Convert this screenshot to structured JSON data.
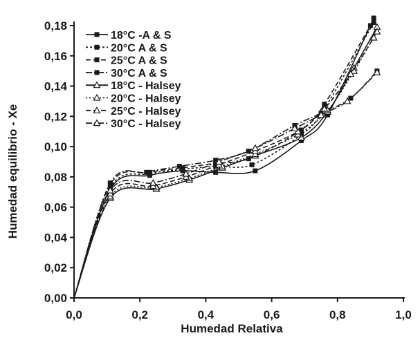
{
  "chart_data": {
    "type": "line",
    "xlabel": "Humedad Relativa",
    "ylabel": "Humedad equilibrio - Xe",
    "xlim": [
      0,
      1.0
    ],
    "ylim": [
      0,
      0.18
    ],
    "x_ticks": [
      "0,0",
      "0,2",
      "0,4",
      "0,6",
      "0,8",
      "1,0"
    ],
    "y_ticks": [
      "0,00",
      "0,02",
      "0,04",
      "0,06",
      "0,08",
      "0,10",
      "0,12",
      "0,14",
      "0,16",
      "0,18"
    ],
    "grid": false,
    "legend_position": "top-left",
    "series": [
      {
        "name": "18°C -A & S",
        "marker": "square",
        "dash": "solid",
        "x": [
          0.0,
          0.11,
          0.23,
          0.33,
          0.43,
          0.55,
          0.69,
          0.77,
          0.91
        ],
        "y": [
          0.0,
          0.072,
          0.081,
          0.084,
          0.083,
          0.084,
          0.104,
          0.121,
          0.185
        ]
      },
      {
        "name": "20°C A & S",
        "marker": "square",
        "dash": "short",
        "x": [
          0.0,
          0.11,
          0.23,
          0.33,
          0.43,
          0.54,
          0.69,
          0.76,
          0.91
        ],
        "y": [
          0.0,
          0.073,
          0.082,
          0.085,
          0.087,
          0.088,
          0.108,
          0.125,
          0.182
        ]
      },
      {
        "name": "25°C A & S",
        "marker": "square",
        "dash": "dash",
        "x": [
          0.0,
          0.11,
          0.23,
          0.33,
          0.43,
          0.53,
          0.69,
          0.76,
          0.9
        ],
        "y": [
          0.0,
          0.075,
          0.083,
          0.086,
          0.089,
          0.092,
          0.111,
          0.128,
          0.18
        ]
      },
      {
        "name": "30°C A & S",
        "marker": "square",
        "dash": "dashdot",
        "x": [
          0.0,
          0.11,
          0.22,
          0.32,
          0.43,
          0.53,
          0.67,
          0.75,
          0.84,
          0.92
        ],
        "y": [
          0.0,
          0.076,
          0.083,
          0.087,
          0.091,
          0.097,
          0.114,
          0.122,
          0.132,
          0.15
        ]
      },
      {
        "name": "18°C - Halsey",
        "marker": "triangle",
        "dash": "solid",
        "x": [
          0.0,
          0.11,
          0.25,
          0.35,
          0.45,
          0.55,
          0.69,
          0.77,
          0.85,
          0.92
        ],
        "y": [
          0.0,
          0.066,
          0.072,
          0.078,
          0.086,
          0.094,
          0.106,
          0.123,
          0.152,
          0.179
        ]
      },
      {
        "name": "20°C - Halsey",
        "marker": "triangle",
        "dash": "dot",
        "x": [
          0.0,
          0.11,
          0.25,
          0.35,
          0.45,
          0.55,
          0.68,
          0.77,
          0.85,
          0.92
        ],
        "y": [
          0.0,
          0.067,
          0.073,
          0.079,
          0.087,
          0.095,
          0.108,
          0.124,
          0.15,
          0.176
        ]
      },
      {
        "name": "25°C - Halsey",
        "marker": "triangle",
        "dash": "dash",
        "x": [
          0.0,
          0.11,
          0.24,
          0.34,
          0.44,
          0.55,
          0.68,
          0.76,
          0.84,
          0.91
        ],
        "y": [
          0.0,
          0.069,
          0.074,
          0.08,
          0.088,
          0.097,
          0.11,
          0.125,
          0.148,
          0.172
        ]
      },
      {
        "name": "30°C - Halsey",
        "marker": "triangle",
        "dash": "dashdot",
        "x": [
          0.0,
          0.11,
          0.24,
          0.34,
          0.44,
          0.55,
          0.67,
          0.75,
          0.83,
          0.92
        ],
        "y": [
          0.0,
          0.071,
          0.076,
          0.082,
          0.09,
          0.099,
          0.112,
          0.121,
          0.13,
          0.149
        ]
      }
    ]
  }
}
